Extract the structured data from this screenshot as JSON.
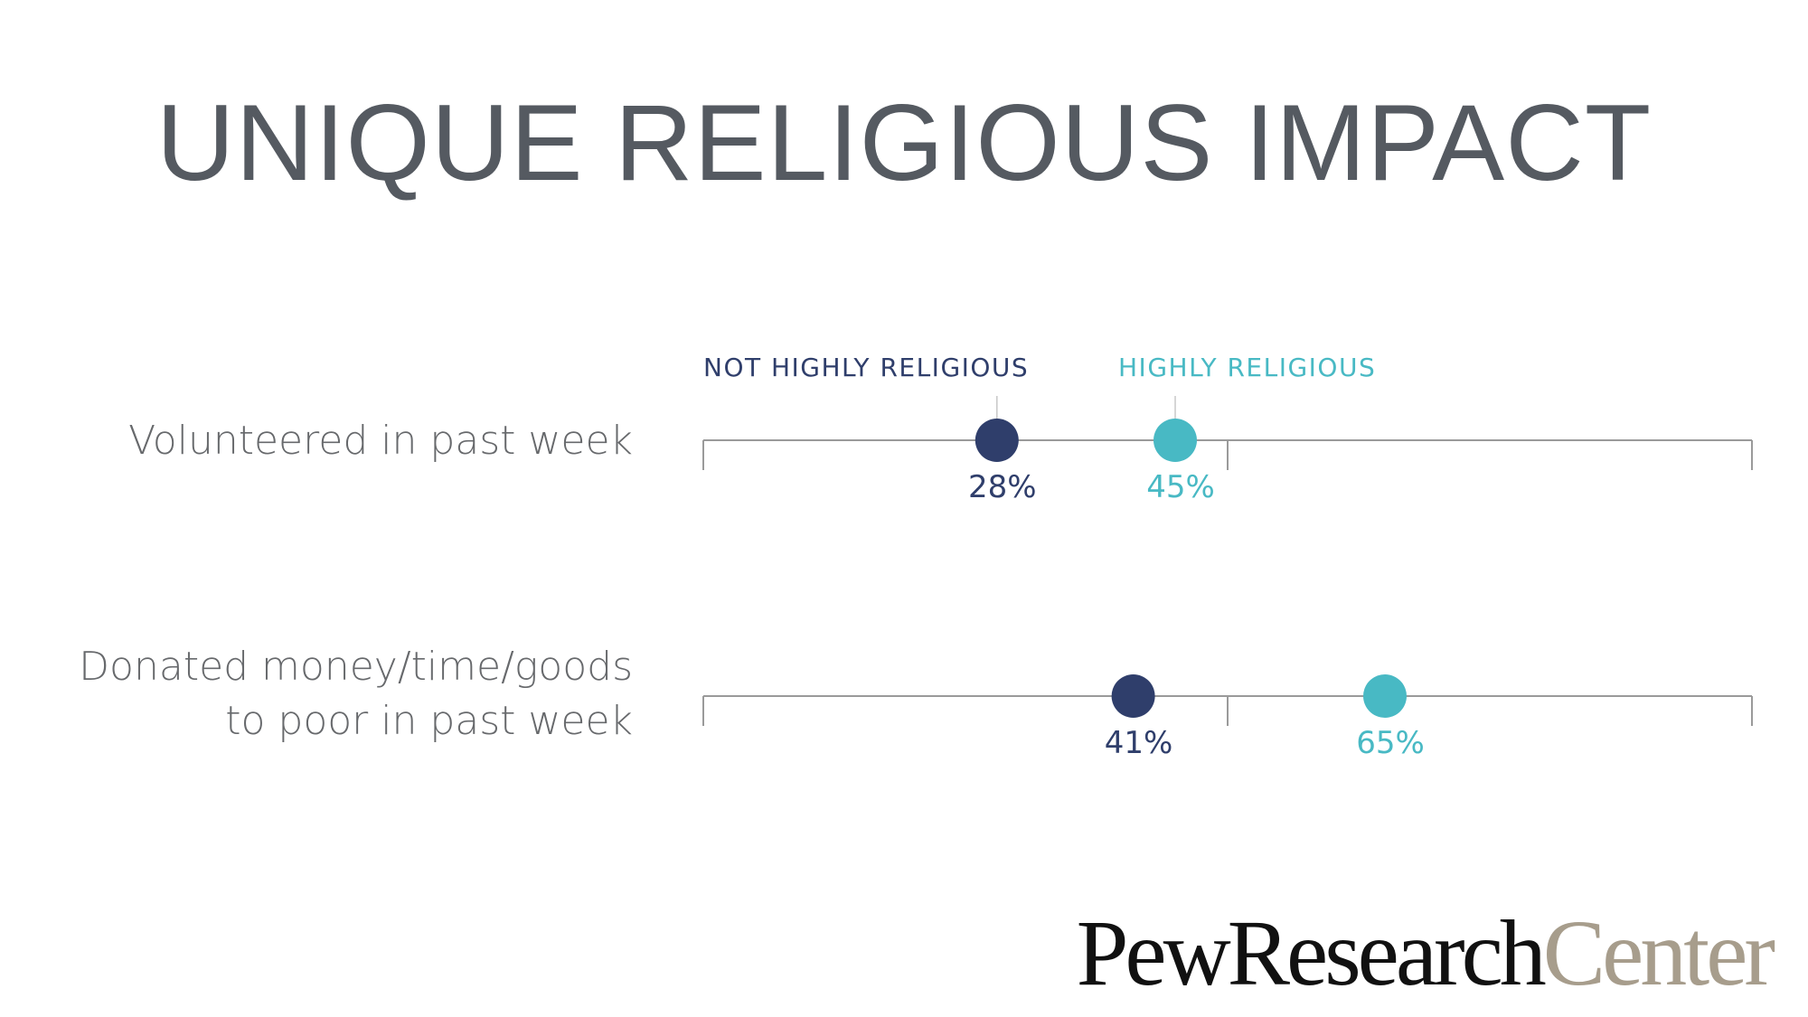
{
  "slide_title": "UNIQUE RELIGIOUS IMPACT",
  "logo": {
    "part1": "PewResearch",
    "part2": "Center",
    "colors": {
      "part1": "#111111",
      "part2": "#a79d8c"
    }
  },
  "chart_data": {
    "type": "scatter",
    "title": "UNIQUE RELIGIOUS IMPACT",
    "xlim": [
      0,
      100
    ],
    "axis_ticks": [
      0,
      50,
      100
    ],
    "grid": false,
    "legend_placement": "top",
    "categories": [
      [
        "Volunteered in past week"
      ],
      [
        "Donated money/time/goods",
        "to poor in past week"
      ]
    ],
    "series": [
      {
        "name": "NOT HIGHLY RELIGIOUS",
        "color": "#2f3e6b",
        "values": [
          28,
          41
        ],
        "labels": [
          "28%",
          "41%"
        ]
      },
      {
        "name": "HIGHLY RELIGIOUS",
        "color": "#48b9c4",
        "values": [
          45,
          65
        ],
        "labels": [
          "45%",
          "65%"
        ]
      }
    ]
  }
}
